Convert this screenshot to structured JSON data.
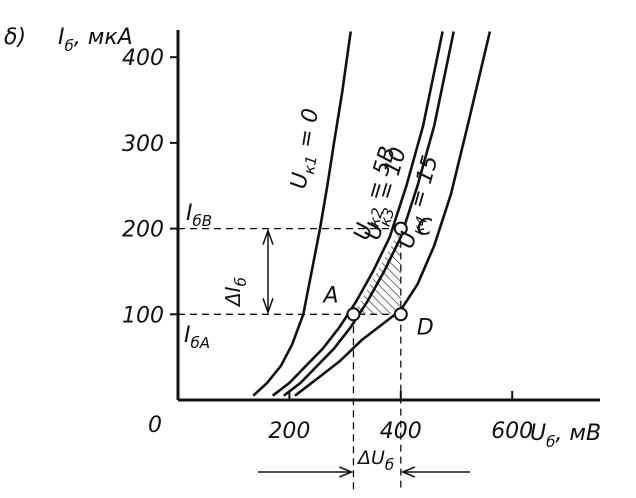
{
  "chart_data": {
    "type": "line",
    "panel_label": "δ)",
    "ylabel": {
      "symbol": "I",
      "sub": "б",
      "unit": ", мкА"
    },
    "xlabel": {
      "symbol": "U",
      "sub": "б",
      "unit": ", мВ"
    },
    "origin_label": "0",
    "xlim": [
      0,
      700
    ],
    "ylim": [
      0,
      430
    ],
    "xticks": [
      {
        "value": 200,
        "label": "200"
      },
      {
        "value": 400,
        "label": "400"
      },
      {
        "value": 600,
        "label": "600"
      }
    ],
    "yticks": [
      {
        "value": 100,
        "label": "100"
      },
      {
        "value": 200,
        "label": "200"
      },
      {
        "value": 300,
        "label": "300"
      },
      {
        "value": 400,
        "label": "400"
      }
    ],
    "series": [
      {
        "name": "Uк1 = 0",
        "label": {
          "symbol": "U",
          "sub": "к1",
          "text": " = 0"
        },
        "x": [
          135,
          160,
          185,
          205,
          225,
          240,
          255,
          268,
          280,
          295,
          310
        ],
        "y": [
          5,
          20,
          40,
          65,
          100,
          150,
          200,
          250,
          300,
          360,
          430
        ]
      },
      {
        "name": "Uк2 = 5В",
        "label": {
          "symbol": "U",
          "sub": "к2",
          "text": " = 5В"
        },
        "x": [
          170,
          200,
          230,
          260,
          290,
          320,
          350,
          380,
          410,
          440,
          475
        ],
        "y": [
          5,
          20,
          40,
          60,
          85,
          115,
          150,
          190,
          250,
          320,
          430
        ]
      },
      {
        "name": "Uк3 = 10",
        "label": {
          "symbol": "U",
          "sub": "к3",
          "text": " = 10"
        },
        "x": [
          190,
          220,
          250,
          280,
          310,
          340,
          370,
          400,
          430,
          460,
          495
        ],
        "y": [
          5,
          20,
          40,
          60,
          85,
          115,
          150,
          190,
          250,
          320,
          430
        ]
      },
      {
        "name": "Uк4 = 15",
        "label": {
          "symbol": "U",
          "sub": "к4",
          "text": " = 15"
        },
        "x": [
          210,
          250,
          290,
          330,
          370,
          400,
          430,
          460,
          490,
          520,
          560
        ],
        "y": [
          5,
          25,
          45,
          70,
          90,
          105,
          135,
          180,
          240,
          320,
          430
        ]
      }
    ],
    "points": [
      {
        "name": "A",
        "label": "A",
        "x": 315,
        "y": 100
      },
      {
        "name": "C",
        "label": "C",
        "x": 400,
        "y": 200
      },
      {
        "name": "D",
        "label": "D",
        "x": 400,
        "y": 100
      }
    ],
    "annotations": {
      "i_b_B": {
        "symbol": "I",
        "sub": "бВ",
        "y": 200
      },
      "i_b_A": {
        "symbol": "I",
        "sub": "бА",
        "y": 100
      },
      "delta_I": {
        "prefix": "Δ",
        "symbol": "I",
        "sub": "б",
        "from": 100,
        "to": 200
      },
      "delta_U": {
        "prefix": "Δ",
        "symbol": "U",
        "sub": "б",
        "from": 315,
        "to": 400
      }
    }
  }
}
